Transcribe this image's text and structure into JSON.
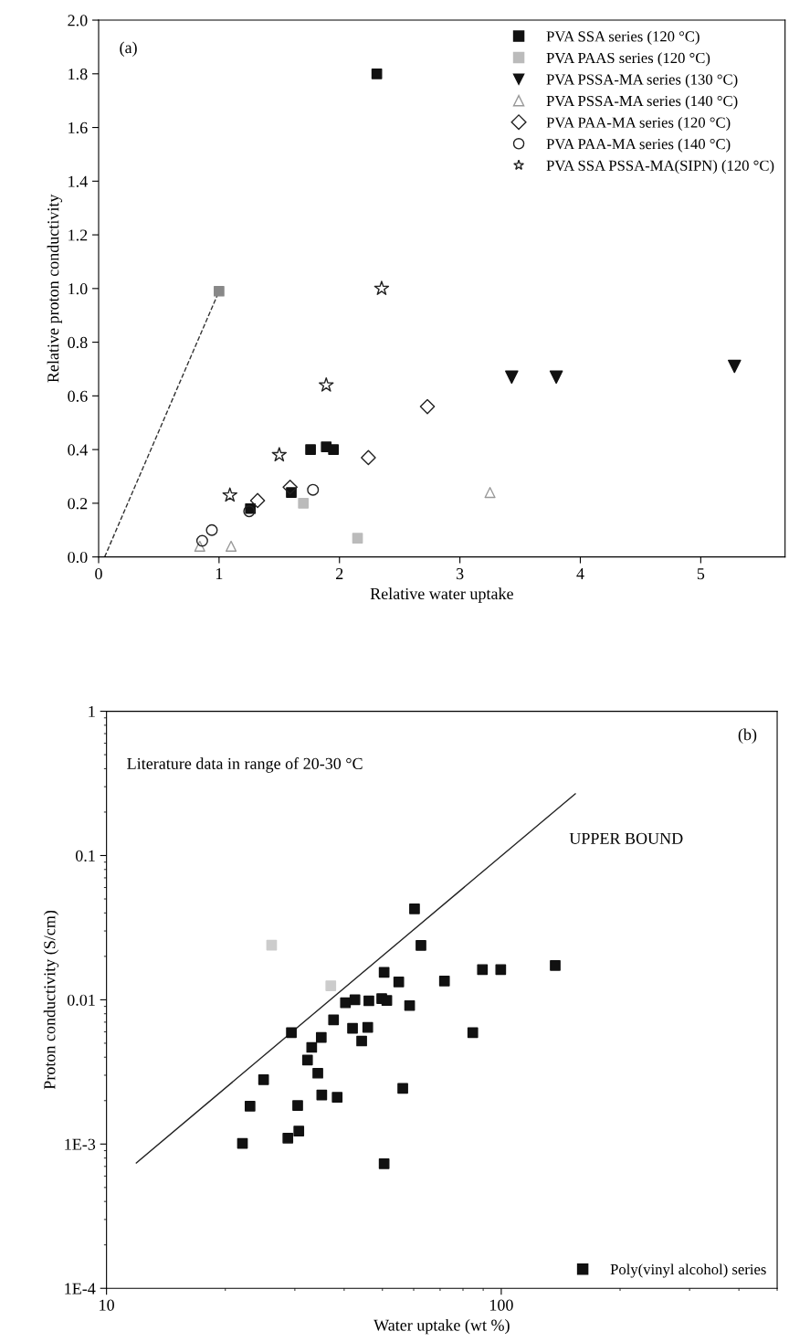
{
  "chart_data": [
    {
      "type": "scatter",
      "xlabel": "Relative water uptake",
      "ylabel": "Relative proton conductivity",
      "annotations": [
        "(a)"
      ],
      "xlim": [
        0,
        5.7
      ],
      "ylim": [
        0,
        2.0
      ],
      "xticks": [
        0,
        1,
        2,
        3,
        4,
        5
      ],
      "yticks": [
        {
          "value": 0,
          "label": "0.0"
        },
        {
          "value": 0.2,
          "label": "0.2"
        },
        {
          "value": 0.4,
          "label": "0.4"
        },
        {
          "value": 0.6,
          "label": "0.6"
        },
        {
          "value": 0.8,
          "label": "0.8"
        },
        {
          "value": 1.0,
          "label": "1.0"
        },
        {
          "value": 1.2,
          "label": "1.2"
        },
        {
          "value": 1.4,
          "label": "1.4"
        },
        {
          "value": 1.6,
          "label": "1.6"
        },
        {
          "value": 1.8,
          "label": "1.8"
        },
        {
          "value": 2.0,
          "label": "2.0"
        }
      ],
      "grid": false,
      "legend": "top right",
      "series": [
        {
          "name": "PVA SSA series (120 °C)",
          "color": "#111111",
          "marker": "square",
          "x": [
            2.31,
            1.76,
            1.89,
            1.95,
            1.6,
            1.26
          ],
          "values": [
            1.8,
            0.4,
            0.41,
            0.4,
            0.24,
            0.18
          ]
        },
        {
          "name": "PVA PAAS series (120 °C)",
          "color": "#bbbbbb",
          "marker": "square",
          "x": [
            1.7,
            2.15
          ],
          "values": [
            0.2,
            0.07
          ]
        },
        {
          "name": "PVA PSSA-MA series (130 °C)",
          "color": "#111111",
          "marker": "triangle_down",
          "x": [
            3.43,
            3.8,
            5.28
          ],
          "values": [
            0.67,
            0.67,
            0.71
          ]
        },
        {
          "name": "PVA PSSA-MA series (140 °C)",
          "color": "#999999",
          "marker": "triangle",
          "x": [
            3.25,
            1.1,
            0.84
          ],
          "values": [
            0.24,
            0.04,
            0.04
          ]
        },
        {
          "name": "PVA PAA-MA series (120 °C)",
          "color": "#222222",
          "marker": "diamond",
          "x": [
            2.73,
            2.24,
            1.32,
            1.59
          ],
          "values": [
            0.56,
            0.37,
            0.21,
            0.26
          ]
        },
        {
          "name": "PVA PAA-MA series (140 °C)",
          "color": "#222222",
          "marker": "circle",
          "x": [
            1.78,
            1.25,
            0.94,
            0.86
          ],
          "values": [
            0.25,
            0.17,
            0.1,
            0.06
          ]
        },
        {
          "name": "PVA SSA PSSA-MA(SIPN) (120 °C)",
          "color": "#222222",
          "marker": "star",
          "x": [
            2.35,
            1.89,
            1.5,
            1.09
          ],
          "values": [
            1.0,
            0.64,
            0.38,
            0.23
          ]
        },
        {
          "color": "#888888",
          "marker": "square",
          "x": [
            1.0
          ],
          "values": [
            0.99
          ]
        },
        {
          "type": "line",
          "color": "#333333",
          "line_style": "dashed",
          "marker": "none",
          "x": [
            0.05,
            1.0
          ],
          "values": [
            0,
            0.99
          ]
        }
      ]
    },
    {
      "type": "scatter",
      "xlabel": "Water uptake (wt %)",
      "ylabel": "Proton conductivity (S/cm)",
      "annotations": [
        "(b)",
        "Literature data in range of 20-30 °C",
        "UPPER BOUND"
      ],
      "log": "xy",
      "xlim": [
        10,
        500
      ],
      "ylim": [
        0.0001,
        1
      ],
      "xticks": [
        10,
        100
      ],
      "yticks": [
        {
          "value": 0.0001,
          "label": "1E-4"
        },
        {
          "value": 0.001,
          "label": "1E-3"
        },
        0.01,
        0.1,
        1
      ],
      "grid": false,
      "legend": "bottom right",
      "series": [
        {
          "name": "Poly(vinyl alcohol) series",
          "color": "#111111",
          "marker": "square",
          "x": [
            22.1,
            23.1,
            25.0,
            29.4,
            28.8,
            30.5,
            30.7,
            32.3,
            33.1,
            34.3,
            35.0,
            35.1,
            37.6,
            38.4,
            40.3,
            42.0,
            42.6,
            44.3,
            46.2,
            45.9,
            49.8,
            51.3,
            50.5,
            50.5,
            55.0,
            56.3,
            58.6,
            60.3,
            62.6,
            71.8,
            84.7,
            89.6,
            99.7,
            137
          ],
          "values": [
            0.00101,
            0.00183,
            0.00279,
            0.00592,
            0.0011,
            0.00185,
            0.00123,
            0.00382,
            0.00468,
            0.0031,
            0.00549,
            0.00219,
            0.00725,
            0.00211,
            0.00953,
            0.00635,
            0.01,
            0.00518,
            0.00984,
            0.00643,
            0.0102,
            0.00989,
            0.0155,
            0.00073,
            0.0133,
            0.00243,
            0.00912,
            0.0427,
            0.0238,
            0.0135,
            0.00592,
            0.0162,
            0.0162,
            0.0173
          ]
        },
        {
          "color": "#cccccc",
          "marker": "square",
          "x": [
            26.2,
            37.0
          ],
          "values": [
            0.0239,
            0.0125
          ]
        },
        {
          "type": "line",
          "color": "#222222",
          "line_style": "solid",
          "marker": "none",
          "x": [
            11.9,
            154
          ],
          "values": [
            0.00074,
            0.268
          ]
        }
      ]
    }
  ]
}
